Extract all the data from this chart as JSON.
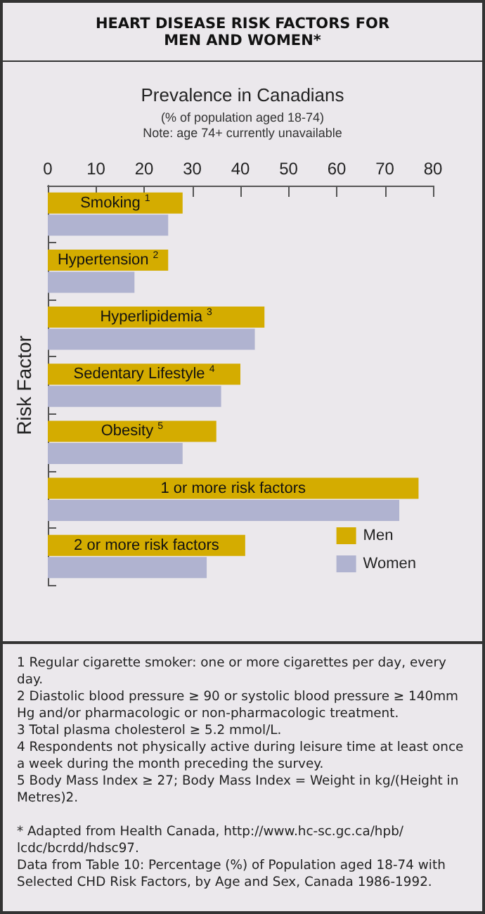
{
  "chart_data": {
    "type": "bar",
    "orientation": "horizontal",
    "title": "HEART DISEASE RISK FACTORS FOR MEN AND WOMEN*",
    "subtitle": "Prevalence in Canadians",
    "ylabel": "Risk Factor",
    "categories": [
      "Smoking$^{1}$",
      "Hypertension$^{2}$",
      "Hyperlipidemia$^{3}$",
      "Sedentary Lifestyle$^{4}$",
      "Obesity$^{5}$",
      "1 or more risk factors",
      "2 or more risk factors"
    ],
    "series": [
      {
        "name": "Men",
        "color": "#d4ac00",
        "values": [
          28,
          25,
          45,
          40,
          35,
          77,
          41
        ]
      },
      {
        "name": "Women",
        "color": "#b0b3d0",
        "values": [
          25,
          18,
          43,
          36,
          28,
          73,
          33
        ]
      }
    ],
    "xlim": [
      0,
      80
    ],
    "xticks": [
      0,
      10,
      20,
      30,
      40,
      50,
      60,
      70,
      80
    ],
    "grid": false,
    "legend": "bottom right",
    "annotations": [
      "(% of population aged 18-74)",
      "Note: age 74+ currently unavailable",
      "1 Regular cigarette smoker: one or more cigarettes per day, every day.",
      "2 Diastolic blood pressure ≥ 90 or systolic blood pressure ≥ 140mm Hg and/or pharmacologic or non-pharmacologic treatment.",
      "3 Total plasma cholesterol ≥ 5.2 mmol/L.",
      "4 Respondents not physically active during leisure time at least once a week during the month preceding the survey.",
      "5 Body Mass Index ≥ 27; Body Mass Index = Weight in kg/(Height in Metres)2.",
      "* Adapted from Health Canada, http://www.hc-sc.gc.ca/hpb/ lcdc/bcrdd/hdsc97.",
      "Data from Table 10: Percentage (%) of Population aged 18-74 with Selected CHD Risk Factors, by Age and Sex, Canada 1986-1992."
    ]
  }
}
